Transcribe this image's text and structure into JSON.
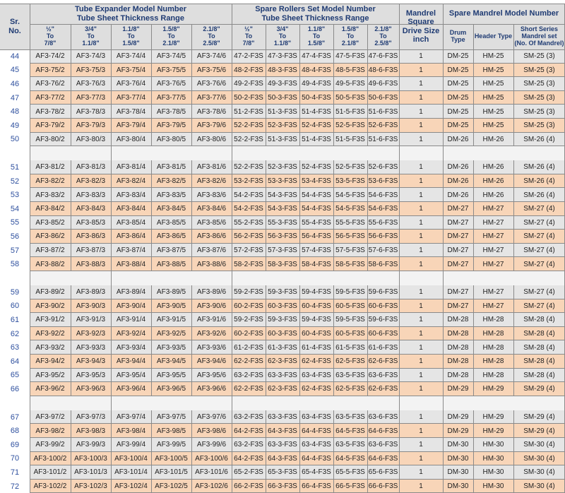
{
  "headers": {
    "sr_no": "Sr.\nNo.",
    "tube_expander": "Tube Expander Model Number\nTube Sheet Thickness Range",
    "spare_rollers": "Spare Rollers Set Model Number\nTube Sheet Thickness Range",
    "mandrel_square": "Mandrel\nSquare\nDrive Size\ninch",
    "spare_mandrel": "Spare Mandrel Model Number",
    "ranges": [
      "½\"\nTo\n7/8\"",
      "3/4\"\nTo\n1.1/8\"",
      "1.1/8\"\nTo\n1.5/8\"",
      "1.5/8\"\nTo\n2.1/8\"",
      "2.1/8\"\nTo\n2.5/8\""
    ],
    "drum_type": "Drum Type",
    "header_type": "Header Type",
    "short_series": "Short Series\nMandrel set\n(No. Of Mandrel)"
  },
  "colors": {
    "header_text": "#1f3b73",
    "sr_text": "#2d4f9e",
    "row_gray": "#e5e5e5",
    "row_peach": "#f8d5b8",
    "header_bg": "#dedede",
    "separator_bg": "#f3f3f3"
  },
  "rows": [
    {
      "sr": "44",
      "te": [
        "AF3-74/2",
        "AF3-74/3",
        "AF3-74/4",
        "AF3-74/5",
        "AF3-74/6"
      ],
      "sr_set": [
        "47-2-F3S",
        "47-3-F3S",
        "47-4-F3S",
        "47-5-F3S",
        "47-6-F3S"
      ],
      "drive": "1",
      "drum": "DM-25",
      "header": "HM-25",
      "short": "SM-25 (3)"
    },
    {
      "sr": "45",
      "te": [
        "AF3-75/2",
        "AF3-75/3",
        "AF3-75/4",
        "AF3-75/5",
        "AF3-75/6"
      ],
      "sr_set": [
        "48-2-F3S",
        "48-3-F3S",
        "48-4-F3S",
        "48-5-F3S",
        "48-6-F3S"
      ],
      "drive": "1",
      "drum": "DM-25",
      "header": "HM-25",
      "short": "SM-25 (3)"
    },
    {
      "sr": "46",
      "te": [
        "AF3-76/2",
        "AF3-76/3",
        "AF3-76/4",
        "AF3-76/5",
        "AF3-76/6"
      ],
      "sr_set": [
        "49-2-F3S",
        "49-3-F3S",
        "49-4-F3S",
        "49-5-F3S",
        "49-6-F3S"
      ],
      "drive": "1",
      "drum": "DM-25",
      "header": "HM-25",
      "short": "SM-25 (3)"
    },
    {
      "sr": "47",
      "te": [
        "AF3-77/2",
        "AF3-77/3",
        "AF3-77/4",
        "AF3-77/5",
        "AF3-77/6"
      ],
      "sr_set": [
        "50-2-F3S",
        "50-3-F3S",
        "50-4-F3S",
        "50-5-F3S",
        "50-6-F3S"
      ],
      "drive": "1",
      "drum": "DM-25",
      "header": "HM-25",
      "short": "SM-25 (3)"
    },
    {
      "sr": "48",
      "te": [
        "AF3-78/2",
        "AF3-78/3",
        "AF3-78/4",
        "AF3-78/5",
        "AF3-78/6"
      ],
      "sr_set": [
        "51-2-F3S",
        "51-3-F3S",
        "51-4-F3S",
        "51-5-F3S",
        "51-6-F3S"
      ],
      "drive": "1",
      "drum": "DM-25",
      "header": "HM-25",
      "short": "SM-25 (3)"
    },
    {
      "sr": "49",
      "te": [
        "AF3-79/2",
        "AF3-79/3",
        "AF3-79/4",
        "AF3-79/5",
        "AF3-79/6"
      ],
      "sr_set": [
        "52-2-F3S",
        "52-3-F3S",
        "52-4-F3S",
        "52-5-F3S",
        "52-6-F3S"
      ],
      "drive": "1",
      "drum": "DM-25",
      "header": "HM-25",
      "short": "SM-25 (3)"
    },
    {
      "sr": "50",
      "te": [
        "AF3-80/2",
        "AF3-80/3",
        "AF3-80/4",
        "AF3-80/5",
        "AF3-80/6"
      ],
      "sr_set": [
        "52-2-F3S",
        "51-3-F3S",
        "51-4-F3S",
        "51-5-F3S",
        "51-6-F3S"
      ],
      "drive": "1",
      "drum": "DM-26",
      "header": "HM-26",
      "short": "SM-26 (4)"
    },
    {
      "sep": true
    },
    {
      "sr": "51",
      "te": [
        "AF3-81/2",
        "AF3-81/3",
        "AF3-81/4",
        "AF3-81/5",
        "AF3-81/6"
      ],
      "sr_set": [
        "52-2-F3S",
        "52-3-F3S",
        "52-4-F3S",
        "52-5-F3S",
        "52-6-F3S"
      ],
      "drive": "1",
      "drum": "DM-26",
      "header": "HM-26",
      "short": "SM-26 (4)"
    },
    {
      "sr": "52",
      "te": [
        "AF3-82/2",
        "AF3-82/3",
        "AF3-82/4",
        "AF3-82/5",
        "AF3-82/6"
      ],
      "sr_set": [
        "53-2-F3S",
        "53-3-F3S",
        "53-4-F3S",
        "53-5-F3S",
        "53-6-F3S"
      ],
      "drive": "1",
      "drum": "DM-26",
      "header": "HM-26",
      "short": "SM-26 (4)"
    },
    {
      "sr": "53",
      "te": [
        "AF3-83/2",
        "AF3-83/3",
        "AF3-83/4",
        "AF3-83/5",
        "AF3-83/6"
      ],
      "sr_set": [
        "54-2-F3S",
        "54-3-F3S",
        "54-4-F3S",
        "54-5-F3S",
        "54-6-F3S"
      ],
      "drive": "1",
      "drum": "DM-26",
      "header": "HM-26",
      "short": "SM-26 (4)"
    },
    {
      "sr": "54",
      "te": [
        "AF3-84/2",
        "AF3-84/3",
        "AF3-84/4",
        "AF3-84/5",
        "AF3-84/6"
      ],
      "sr_set": [
        "54-2-F3S",
        "54-3-F3S",
        "54-4-F3S",
        "54-5-F3S",
        "54-6-F3S"
      ],
      "drive": "1",
      "drum": "DM-27",
      "header": "HM-27",
      "short": "SM-27 (4)"
    },
    {
      "sr": "55",
      "te": [
        "AF3-85/2",
        "AF3-85/3",
        "AF3-85/4",
        "AF3-85/5",
        "AF3-85/6"
      ],
      "sr_set": [
        "55-2-F3S",
        "55-3-F3S",
        "55-4-F3S",
        "55-5-F3S",
        "55-6-F3S"
      ],
      "drive": "1",
      "drum": "DM-27",
      "header": "HM-27",
      "short": "SM-27 (4)"
    },
    {
      "sr": "56",
      "te": [
        "AF3-86/2",
        "AF3-86/3",
        "AF3-86/4",
        "AF3-86/5",
        "AF3-86/6"
      ],
      "sr_set": [
        "56-2-F3S",
        "56-3-F3S",
        "56-4-F3S",
        "56-5-F3S",
        "56-6-F3S"
      ],
      "drive": "1",
      "drum": "DM-27",
      "header": "HM-27",
      "short": "SM-27 (4)"
    },
    {
      "sr": "57",
      "te": [
        "AF3-87/2",
        "AF3-87/3",
        "AF3-87/4",
        "AF3-87/5",
        "AF3-87/6"
      ],
      "sr_set": [
        "57-2-F3S",
        "57-3-F3S",
        "57-4-F3S",
        "57-5-F3S",
        "57-6-F3S"
      ],
      "drive": "1",
      "drum": "DM-27",
      "header": "HM-27",
      "short": "SM-27 (4)"
    },
    {
      "sr": "58",
      "te": [
        "AF3-88/2",
        "AF3-88/3",
        "AF3-88/4",
        "AF3-88/5",
        "AF3-88/6"
      ],
      "sr_set": [
        "58-2-F3S",
        "58-3-F3S",
        "58-4-F3S",
        "58-5-F3S",
        "58-6-F3S"
      ],
      "drive": "1",
      "drum": "DM-27",
      "header": "HM-27",
      "short": "SM-27 (4)"
    },
    {
      "sep": true
    },
    {
      "sr": "59",
      "te": [
        "AF3-89/2",
        "AF3-89/3",
        "AF3-89/4",
        "AF3-89/5",
        "AF3-89/6"
      ],
      "sr_set": [
        "59-2-F3S",
        "59-3-F3S",
        "59-4-F3S",
        "59-5-F3S",
        "59-6-F3S"
      ],
      "drive": "1",
      "drum": "DM-27",
      "header": "HM-27",
      "short": "SM-27 (4)"
    },
    {
      "sr": "60",
      "te": [
        "AF3-90/2",
        "AF3-90/3",
        "AF3-90/4",
        "AF3-90/5",
        "AF3-90/6"
      ],
      "sr_set": [
        "60-2-F3S",
        "60-3-F3S",
        "60-4-F3S",
        "60-5-F3S",
        "60-6-F3S"
      ],
      "drive": "1",
      "drum": "DM-27",
      "header": "HM-27",
      "short": "SM-27 (4)"
    },
    {
      "sr": "61",
      "te": [
        "AF3-91/2",
        "AF3-91/3",
        "AF3-91/4",
        "AF3-91/5",
        "AF3-91/6"
      ],
      "sr_set": [
        "59-2-F3S",
        "59-3-F3S",
        "59-4-F3S",
        "59-5-F3S",
        "59-6-F3S"
      ],
      "drive": "1",
      "drum": "DM-28",
      "header": "HM-28",
      "short": "SM-28 (4)"
    },
    {
      "sr": "62",
      "te": [
        "AF3-92/2",
        "AF3-92/3",
        "AF3-92/4",
        "AF3-92/5",
        "AF3-92/6"
      ],
      "sr_set": [
        "60-2-F3S",
        "60-3-F3S",
        "60-4-F3S",
        "60-5-F3S",
        "60-6-F3S"
      ],
      "drive": "1",
      "drum": "DM-28",
      "header": "HM-28",
      "short": "SM-28 (4)"
    },
    {
      "sr": "63",
      "te": [
        "AF3-93/2",
        "AF3-93/3",
        "AF3-93/4",
        "AF3-93/5",
        "AF3-93/6"
      ],
      "sr_set": [
        "61-2-F3S",
        "61-3-F3S",
        "61-4-F3S",
        "61-5-F3S",
        "61-6-F3S"
      ],
      "drive": "1",
      "drum": "DM-28",
      "header": "HM-28",
      "short": "SM-28 (4)"
    },
    {
      "sr": "64",
      "te": [
        "AF3-94/2",
        "AF3-94/3",
        "AF3-94/4",
        "AF3-94/5",
        "AF3-94/6"
      ],
      "sr_set": [
        "62-2-F3S",
        "62-3-F3S",
        "62-4-F3S",
        "62-5-F3S",
        "62-6-F3S"
      ],
      "drive": "1",
      "drum": "DM-28",
      "header": "HM-28",
      "short": "SM-28 (4)"
    },
    {
      "sr": "65",
      "te": [
        "AF3-95/2",
        "AF3-95/3",
        "AF3-95/4",
        "AF3-95/5",
        "AF3-95/6"
      ],
      "sr_set": [
        "63-2-F3S",
        "63-3-F3S",
        "63-4-F3S",
        "63-5-F3S",
        "63-6-F3S"
      ],
      "drive": "1",
      "drum": "DM-28",
      "header": "HM-28",
      "short": "SM-28 (4)"
    },
    {
      "sr": "66",
      "te": [
        "AF3-96/2",
        "AF3-96/3",
        "AF3-96/4",
        "AF3-96/5",
        "AF3-96/6"
      ],
      "sr_set": [
        "62-2-F3S",
        "62-3-F3S",
        "62-4-F3S",
        "62-5-F3S",
        "62-6-F3S"
      ],
      "drive": "1",
      "drum": "DM-29",
      "header": "HM-29",
      "short": "SM-29 (4)"
    },
    {
      "sep": true
    },
    {
      "sr": "67",
      "te": [
        "AF3-97/2",
        "AF3-97/3",
        "AF3-97/4",
        "AF3-97/5",
        "AF3-97/6"
      ],
      "sr_set": [
        "63-2-F3S",
        "63-3-F3S",
        "63-4-F3S",
        "63-5-F3S",
        "63-6-F3S"
      ],
      "drive": "1",
      "drum": "DM-29",
      "header": "HM-29",
      "short": "SM-29 (4)"
    },
    {
      "sr": "68",
      "te": [
        "AF3-98/2",
        "AF3-98/3",
        "AF3-98/4",
        "AF3-98/5",
        "AF3-98/6"
      ],
      "sr_set": [
        "64-2-F3S",
        "64-3-F3S",
        "64-4-F3S",
        "64-5-F3S",
        "64-6-F3S"
      ],
      "drive": "1",
      "drum": "DM-29",
      "header": "HM-29",
      "short": "SM-29 (4)"
    },
    {
      "sr": "69",
      "te": [
        "AF3-99/2",
        "AF3-99/3",
        "AF3-99/4",
        "AF3-99/5",
        "AF3-99/6"
      ],
      "sr_set": [
        "63-2-F3S",
        "63-3-F3S",
        "63-4-F3S",
        "63-5-F3S",
        "63-6-F3S"
      ],
      "drive": "1",
      "drum": "DM-30",
      "header": "HM-30",
      "short": "SM-30 (4)"
    },
    {
      "sr": "70",
      "te": [
        "AF3-100/2",
        "AF3-100/3",
        "AF3-100/4",
        "AF3-100/5",
        "AF3-100/6"
      ],
      "sr_set": [
        "64-2-F3S",
        "64-3-F3S",
        "64-4-F3S",
        "64-5-F3S",
        "64-6-F3S"
      ],
      "drive": "1",
      "drum": "DM-30",
      "header": "HM-30",
      "short": "SM-30 (4)"
    },
    {
      "sr": "71",
      "te": [
        "AF3-101/2",
        "AF3-101/3",
        "AF3-101/4",
        "AF3-101/5",
        "AF3-101/6"
      ],
      "sr_set": [
        "65-2-F3S",
        "65-3-F3S",
        "65-4-F3S",
        "65-5-F3S",
        "65-6-F3S"
      ],
      "drive": "1",
      "drum": "DM-30",
      "header": "HM-30",
      "short": "SM-30 (4)"
    },
    {
      "sr": "72",
      "te": [
        "AF3-102/2",
        "AF3-102/3",
        "AF3-102/4",
        "AF3-102/5",
        "AF3-102/6"
      ],
      "sr_set": [
        "66-2-F3S",
        "66-3-F3S",
        "66-4-F3S",
        "66-5-F3S",
        "66-6-F3S"
      ],
      "drive": "1",
      "drum": "DM-30",
      "header": "HM-30",
      "short": "SM-30 (4)"
    }
  ]
}
